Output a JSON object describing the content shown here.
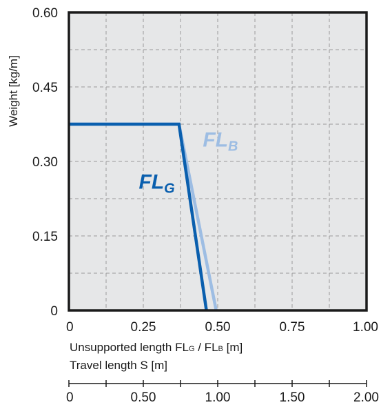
{
  "chart_data": {
    "type": "line",
    "title": "",
    "ylabel": "Weight  [kg/m]",
    "xlabel": "Unsupported length FL",
    "xlabel_sub_g": "G",
    "xlabel_sep": " / FL",
    "xlabel_sub_b": "B",
    "xlabel_unit": " [m]",
    "x2label": "Travel length S  [m]",
    "ylim": [
      0,
      0.6
    ],
    "xlim": [
      0,
      1.0
    ],
    "x2lim": [
      0,
      2.0
    ],
    "grid": true,
    "yticks": [
      {
        "value": 0,
        "label": "0"
      },
      {
        "value": 0.15,
        "label": "0.15"
      },
      {
        "value": 0.3,
        "label": "0.30"
      },
      {
        "value": 0.45,
        "label": "0.45"
      },
      {
        "value": 0.6,
        "label": "0.60"
      }
    ],
    "xticks": [
      {
        "value": 0,
        "label": "0"
      },
      {
        "value": 0.25,
        "label": "0.25"
      },
      {
        "value": 0.5,
        "label": "0.50"
      },
      {
        "value": 0.75,
        "label": "0.75"
      },
      {
        "value": 1.0,
        "label": "1.00"
      }
    ],
    "x2ticks": [
      {
        "value": 0,
        "label": "0"
      },
      {
        "value": 0.5,
        "label": "0.50"
      },
      {
        "value": 1.0,
        "label": "1.00"
      },
      {
        "value": 1.5,
        "label": "1.50"
      },
      {
        "value": 2.0,
        "label": "2.00"
      }
    ],
    "series": [
      {
        "name": "FL",
        "sub": "B",
        "color": "#9dbde3",
        "points": [
          {
            "x": 0,
            "y": 0.375
          },
          {
            "x": 0.37,
            "y": 0.375
          },
          {
            "x": 0.495,
            "y": 0
          }
        ],
        "label_at": {
          "x": 0.45,
          "y": 0.33
        }
      },
      {
        "name": "FL",
        "sub": "G",
        "color": "#0a5fae",
        "points": [
          {
            "x": 0,
            "y": 0.375
          },
          {
            "x": 0.37,
            "y": 0.375
          },
          {
            "x": 0.462,
            "y": 0
          }
        ],
        "label_at": {
          "x": 0.235,
          "y": 0.245
        }
      }
    ]
  }
}
